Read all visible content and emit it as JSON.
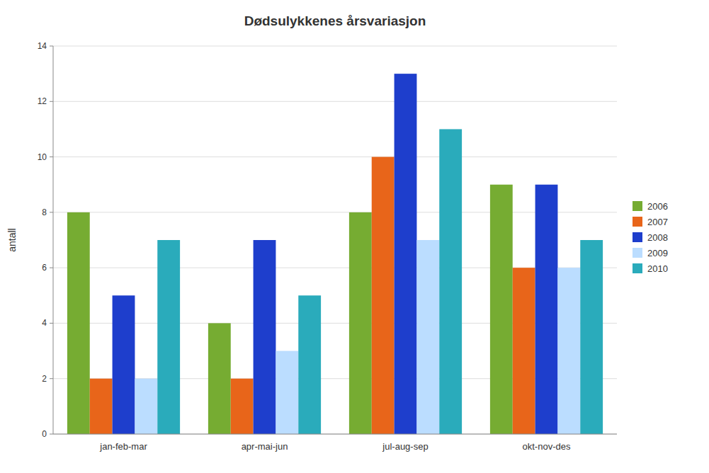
{
  "chart_data": {
    "type": "bar",
    "title": "Dødsulykkenes årsvariasjon",
    "ylabel": "antall",
    "categories": [
      "jan-feb-mar",
      "apr-mai-jun",
      "jul-aug-sep",
      "okt-nov-des"
    ],
    "series": [
      {
        "name": "2006",
        "values": [
          8,
          4,
          8,
          9
        ],
        "color": "#76AC32"
      },
      {
        "name": "2007",
        "values": [
          2,
          2,
          10,
          6
        ],
        "color": "#E8651A"
      },
      {
        "name": "2008",
        "values": [
          5,
          7,
          13,
          9
        ],
        "color": "#1E3ECC"
      },
      {
        "name": "2009",
        "values": [
          2,
          3,
          7,
          6
        ],
        "color": "#BBDDFF"
      },
      {
        "name": "2010",
        "values": [
          7,
          5,
          11,
          7
        ],
        "color": "#2AABBB"
      }
    ],
    "ylim": [
      0,
      14
    ],
    "yticks": [
      0,
      2,
      4,
      6,
      8,
      10,
      12,
      14
    ],
    "grid": true,
    "legend": "right"
  }
}
